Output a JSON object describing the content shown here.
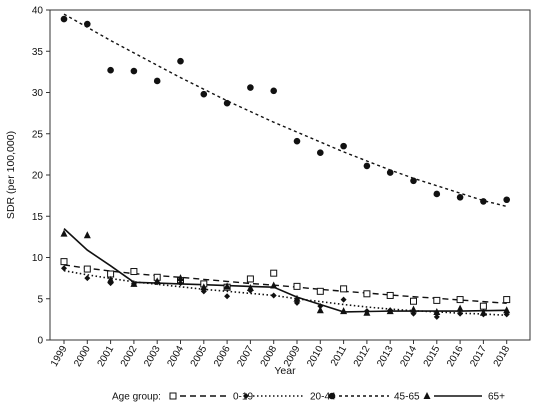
{
  "chart_data": {
    "type": "scatter",
    "title": "",
    "xlabel": "Year",
    "ylabel": "SDR (per 100,000)",
    "ylim": [
      0,
      40
    ],
    "yticks": [
      0,
      5,
      10,
      15,
      20,
      25,
      30,
      35,
      40
    ],
    "categories": [
      "1999",
      "2000",
      "2001",
      "2002",
      "2003",
      "2004",
      "2005",
      "2006",
      "2007",
      "2008",
      "2009",
      "2010",
      "2011",
      "2012",
      "2013",
      "2014",
      "2015",
      "2016",
      "2017",
      "2018"
    ],
    "grid": false,
    "legend": {
      "title": "Age group:",
      "placement": "bottom"
    },
    "series": [
      {
        "name": "0-19",
        "marker": "open-square",
        "line": "dashed",
        "values": [
          9.5,
          8.6,
          8.0,
          8.3,
          7.6,
          7.2,
          6.8,
          6.4,
          7.4,
          8.1,
          6.5,
          5.9,
          6.2,
          5.6,
          5.4,
          4.7,
          4.8,
          4.9,
          4.1,
          4.9
        ],
        "trend": [
          9.1,
          8.7,
          8.35,
          8.05,
          7.8,
          7.6,
          7.35,
          7.1,
          6.85,
          6.65,
          6.4,
          6.15,
          5.9,
          5.7,
          5.45,
          5.25,
          5.05,
          4.85,
          4.65,
          4.45
        ]
      },
      {
        "name": "20-44",
        "marker": "diamond",
        "line": "dotted",
        "values": [
          8.7,
          7.5,
          6.9,
          6.8,
          7.0,
          6.9,
          5.9,
          5.3,
          6.0,
          5.4,
          4.5,
          4.1,
          4.9,
          3.5,
          3.6,
          3.2,
          2.8,
          3.2,
          3.1,
          3.1
        ],
        "trend": [
          8.4,
          7.9,
          7.45,
          7.05,
          6.75,
          6.45,
          6.15,
          5.9,
          5.65,
          5.4,
          5.0,
          4.65,
          4.3,
          4.0,
          3.75,
          3.55,
          3.4,
          3.25,
          3.15,
          3.0
        ]
      },
      {
        "name": "45-65",
        "marker": "filled-circle",
        "line": "dash-dot",
        "values": [
          38.9,
          38.3,
          32.7,
          32.6,
          31.4,
          33.8,
          29.8,
          28.7,
          30.6,
          30.2,
          24.1,
          22.7,
          23.5,
          21.1,
          20.3,
          19.3,
          17.7,
          17.3,
          16.8,
          17.0
        ],
        "trend": [
          39.5,
          37.9,
          36.3,
          34.8,
          33.3,
          31.8,
          30.4,
          29.0,
          27.7,
          26.4,
          25.2,
          24.0,
          22.8,
          21.7,
          20.6,
          19.6,
          18.7,
          17.8,
          16.9,
          16.2
        ]
      },
      {
        "name": "65+",
        "marker": "filled-triangle",
        "line": "solid",
        "values": [
          12.9,
          12.7,
          7.3,
          6.8,
          7.1,
          7.5,
          6.4,
          6.5,
          6.3,
          6.6,
          5.0,
          3.6,
          3.5,
          3.3,
          3.5,
          3.7,
          3.4,
          3.8,
          3.3,
          3.6
        ],
        "trend": [
          13.5,
          10.9,
          9.0,
          7.0,
          6.9,
          6.8,
          6.7,
          6.6,
          6.5,
          6.4,
          5.2,
          4.3,
          3.4,
          3.45,
          3.5,
          3.5,
          3.5,
          3.5,
          3.55,
          3.6
        ]
      }
    ]
  }
}
